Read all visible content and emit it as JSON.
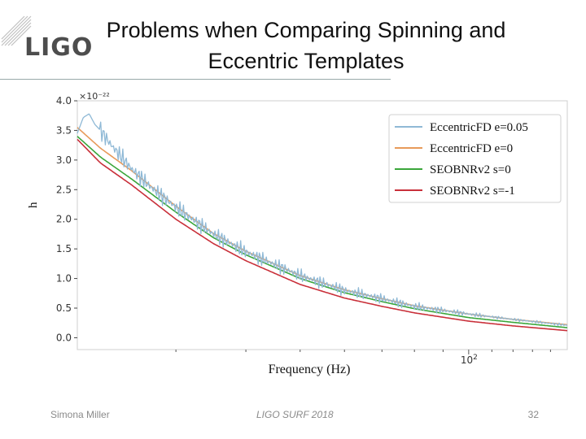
{
  "slide": {
    "logo": "LIGO",
    "title_line1": "Problems when Comparing Spinning and",
    "title_line2": "Eccentric Templates",
    "footer_author": "Simona Miller",
    "footer_event": "LIGO SURF 2018",
    "page_number": "32"
  },
  "colors": {
    "ecc005": "#8fb9d6",
    "ecc0": "#e89a5a",
    "seob0": "#3aa63a",
    "seobm1": "#c9303a",
    "legend_border": "#d0d0d0"
  },
  "chart_data": {
    "type": "line",
    "xlabel": "Frequency (Hz)",
    "ylabel": "h",
    "y_multiplier": "×10⁻²²",
    "x_scale": "log",
    "xlim": [
      20,
      150
    ],
    "ylim": [
      -0.2,
      4.0
    ],
    "y_ticks": [
      "0.0",
      "0.5",
      "1.0",
      "1.5",
      "2.0",
      "2.5",
      "3.0",
      "3.5",
      "4.0"
    ],
    "x_major_tick": {
      "value": 100,
      "base": "10",
      "exponent": "2"
    },
    "legend_location": "upper right",
    "series": [
      {
        "name": "EccentricFD e=0.05",
        "color_key": "ecc005",
        "x": [
          20,
          20.5,
          21,
          21.5,
          22,
          23,
          24,
          25,
          27,
          30,
          35,
          40,
          50,
          60,
          70,
          80,
          100,
          120,
          150
        ],
        "y": [
          3.45,
          3.72,
          3.78,
          3.6,
          3.5,
          3.25,
          3.05,
          2.85,
          2.55,
          2.2,
          1.75,
          1.45,
          1.05,
          0.8,
          0.66,
          0.53,
          0.4,
          0.31,
          0.21
        ],
        "oscillating": true
      },
      {
        "name": "EccentricFD e=0",
        "color_key": "ecc0",
        "x": [
          20,
          22,
          25,
          30,
          35,
          40,
          50,
          60,
          70,
          80,
          100,
          120,
          150
        ],
        "y": [
          3.55,
          3.2,
          2.82,
          2.22,
          1.76,
          1.46,
          1.05,
          0.81,
          0.66,
          0.54,
          0.4,
          0.31,
          0.22
        ]
      },
      {
        "name": "SEOBNRv2 s=0",
        "color_key": "seob0",
        "x": [
          20,
          22,
          25,
          30,
          35,
          40,
          50,
          60,
          70,
          80,
          100,
          120,
          150
        ],
        "y": [
          3.4,
          3.05,
          2.68,
          2.12,
          1.69,
          1.4,
          1.0,
          0.76,
          0.61,
          0.49,
          0.34,
          0.26,
          0.17
        ]
      },
      {
        "name": "SEOBNRv2 s=-1",
        "color_key": "seobm1",
        "x": [
          20,
          22,
          25,
          30,
          35,
          40,
          50,
          60,
          70,
          80,
          100,
          120,
          150
        ],
        "y": [
          3.35,
          2.95,
          2.58,
          2.0,
          1.59,
          1.3,
          0.9,
          0.67,
          0.53,
          0.42,
          0.28,
          0.2,
          0.12
        ]
      }
    ]
  }
}
